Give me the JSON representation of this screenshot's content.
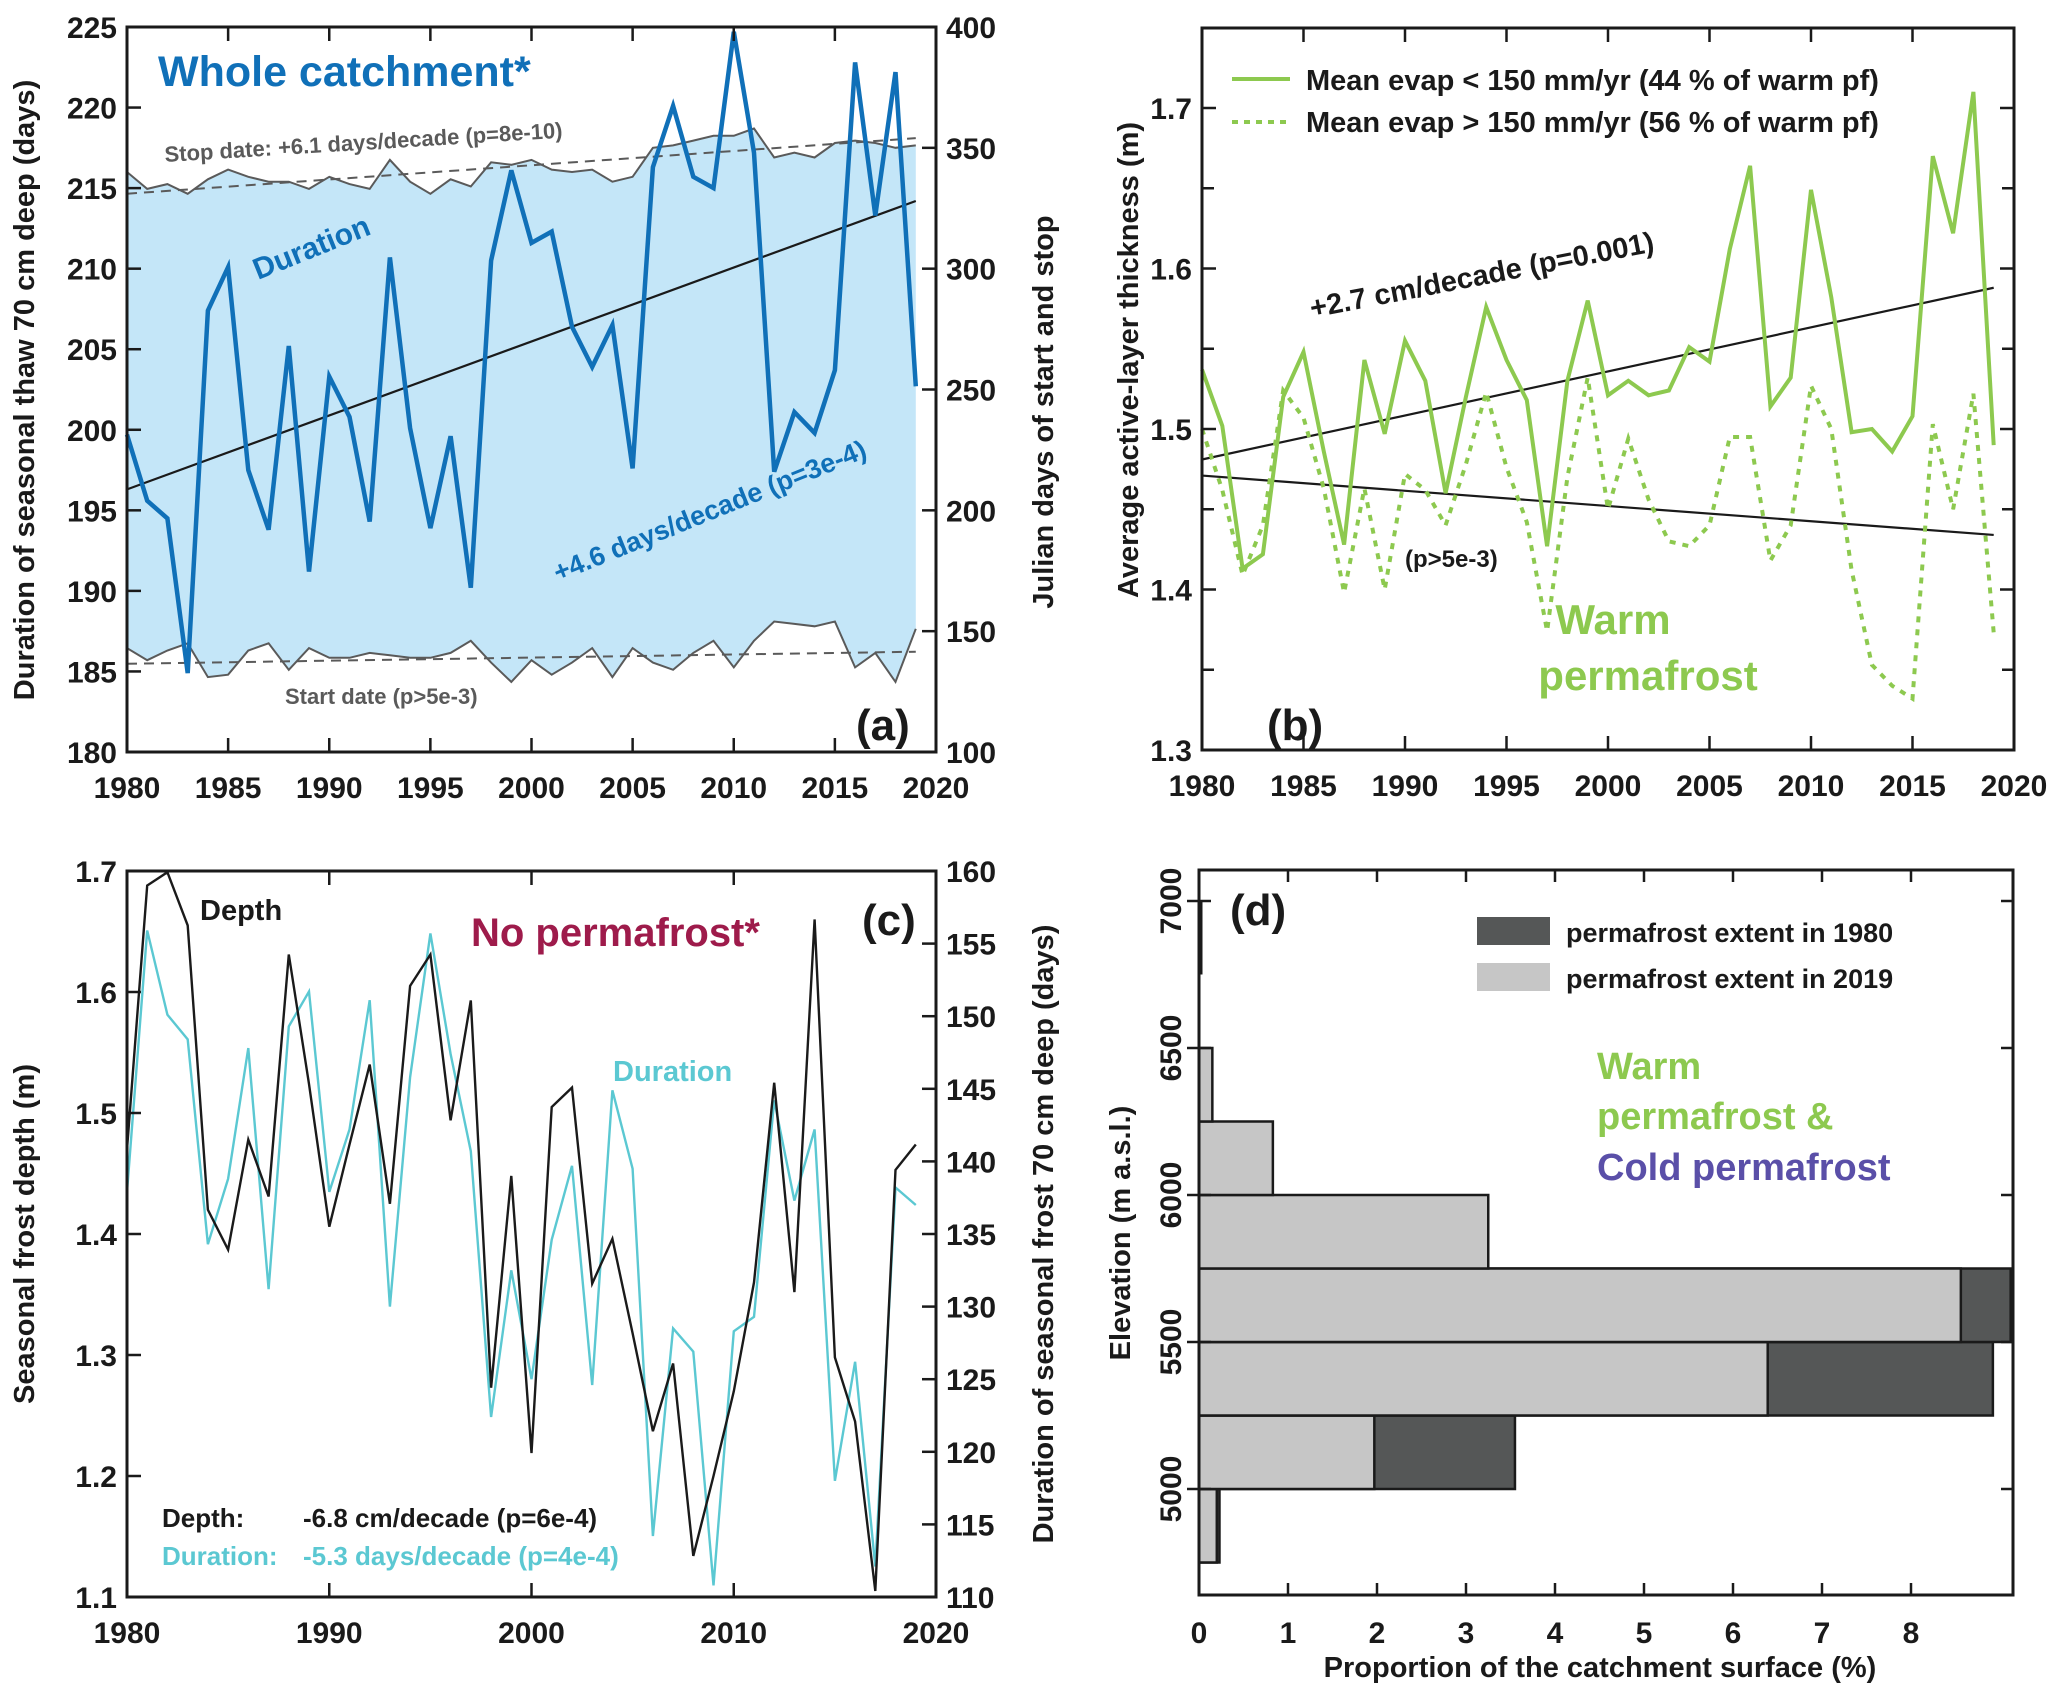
{
  "colors": {
    "duration_blue": "#1070B8",
    "fill_blue": "#C4E6F8",
    "gray_line": "#5A5A5A",
    "green": "#8DC94F",
    "cyan": "#5BC8D2",
    "maroon": "#9E1B4B",
    "purple": "#5A4FA8",
    "dark_bar": "#555757",
    "light_bar": "#C6C6C6",
    "black": "#1a1a1a"
  },
  "chart_data": [
    {
      "id": "a",
      "type": "line",
      "panel_label": "(a)",
      "title": "Whole catchment*",
      "xlabel": "",
      "ylabel": "Duration of seasonal thaw 70 cm deep (days)",
      "y2label": "Julian days of start and stop",
      "xlim": [
        1980,
        2020
      ],
      "ylim": [
        180,
        225
      ],
      "y2lim": [
        100,
        400
      ],
      "xticks": [
        1980,
        1985,
        1990,
        1995,
        2000,
        2005,
        2010,
        2015,
        2020
      ],
      "yticks": [
        180,
        185,
        190,
        195,
        200,
        205,
        210,
        215,
        220,
        225
      ],
      "y2ticks": [
        100,
        150,
        200,
        250,
        300,
        350,
        400
      ],
      "x": [
        1980,
        1981,
        1982,
        1983,
        1984,
        1985,
        1986,
        1987,
        1988,
        1989,
        1990,
        1991,
        1992,
        1993,
        1994,
        1995,
        1996,
        1997,
        1998,
        1999,
        2000,
        2001,
        2002,
        2003,
        2004,
        2005,
        2006,
        2007,
        2008,
        2009,
        2010,
        2011,
        2012,
        2013,
        2014,
        2015,
        2016,
        2017,
        2018,
        2019
      ],
      "series": [
        {
          "name": "Duration",
          "axis": "left",
          "values": [
            199.7,
            195.6,
            194.5,
            184.9,
            207.4,
            210.1,
            197.5,
            193.8,
            205.2,
            191.2,
            203.3,
            200.8,
            194.3,
            210.7,
            200.1,
            193.9,
            199.6,
            190.2,
            210.5,
            216.1,
            211.6,
            212.3,
            206.4,
            203.9,
            206.5,
            197.6,
            216.3,
            220.1,
            215.7,
            215.0,
            224.7,
            217.2,
            197.4,
            201.1,
            199.8,
            203.7,
            222.8,
            213.3,
            222.2,
            202.7
          ]
        },
        {
          "name": "Stop date",
          "axis": "right",
          "values": [
            340,
            333,
            335,
            331,
            337,
            341,
            338,
            336,
            336,
            333,
            338,
            335,
            333,
            345,
            336,
            331,
            337,
            334,
            344,
            343,
            345,
            341,
            340,
            341,
            336,
            338,
            350,
            351,
            353,
            355,
            355,
            358,
            346,
            348,
            346,
            352,
            353,
            352,
            350,
            351
          ]
        },
        {
          "name": "Start date",
          "axis": "right",
          "values": [
            143,
            138,
            142,
            145,
            131,
            132,
            142,
            145,
            134,
            143,
            139,
            139,
            141,
            140,
            139,
            139,
            141,
            146,
            137,
            129,
            138,
            132,
            137,
            143,
            131,
            143,
            137,
            134,
            141,
            146,
            135,
            146,
            154,
            153,
            152,
            154,
            135,
            141,
            129,
            151
          ]
        }
      ],
      "trends": [
        {
          "name": "Duration trend",
          "axis": "left",
          "from": [
            1980,
            196.3
          ],
          "to": [
            2019,
            214.2
          ],
          "style": "solid"
        },
        {
          "name": "Stop date trend",
          "axis": "right",
          "from": [
            1980,
            331
          ],
          "to": [
            2019,
            354
          ],
          "style": "dashed"
        },
        {
          "name": "Start date trend",
          "axis": "right",
          "from": [
            1980,
            136.5
          ],
          "to": [
            2019,
            141.5
          ],
          "style": "dashed"
        }
      ],
      "annotations": {
        "region_label": "Duration",
        "stop_trend": "Stop date: +6.1 days/decade (p=8e-10)",
        "duration_trend": "+4.6 days/decade (p=3e-4)",
        "start_trend": "Start date (p>5e-3)"
      }
    },
    {
      "id": "b",
      "type": "line",
      "panel_label": "(b)",
      "title": "Warm permafrost",
      "title_lines": [
        "Warm",
        "permafrost"
      ],
      "xlabel": "",
      "ylabel": "Average active-layer thickness (m)",
      "xlim": [
        1980,
        2020
      ],
      "ylim": [
        1.3,
        1.75
      ],
      "xticks": [
        1980,
        1985,
        1990,
        1995,
        2000,
        2005,
        2010,
        2015,
        2020
      ],
      "yticks": [
        1.3,
        1.4,
        1.5,
        1.6,
        1.7
      ],
      "yticks_minor": [
        1.35,
        1.45,
        1.55,
        1.65
      ],
      "legend": {
        "placement": "top-right",
        "entries": [
          "Mean evap < 150 mm/yr (44 % of warm pf)",
          "Mean evap > 150 mm/yr (56 % of warm pf)"
        ]
      },
      "x": [
        1980,
        1981,
        1982,
        1983,
        1984,
        1985,
        1986,
        1987,
        1988,
        1989,
        1990,
        1991,
        1992,
        1993,
        1994,
        1995,
        1996,
        1997,
        1998,
        1999,
        2000,
        2001,
        2002,
        2003,
        2004,
        2005,
        2006,
        2007,
        2008,
        2009,
        2010,
        2011,
        2012,
        2013,
        2014,
        2015,
        2016,
        2017,
        2018,
        2019
      ],
      "series": [
        {
          "name": "Mean evap < 150 mm/yr (44 % of warm pf)",
          "style": "solid",
          "values": [
            1.537,
            1.502,
            1.413,
            1.422,
            1.52,
            1.548,
            1.486,
            1.428,
            1.543,
            1.497,
            1.555,
            1.53,
            1.46,
            1.52,
            1.576,
            1.543,
            1.518,
            1.427,
            1.53,
            1.58,
            1.521,
            1.53,
            1.521,
            1.524,
            1.551,
            1.542,
            1.612,
            1.664,
            1.514,
            1.532,
            1.649,
            1.582,
            1.498,
            1.5,
            1.486,
            1.508,
            1.67,
            1.622,
            1.71,
            1.49
          ]
        },
        {
          "name": "Mean evap > 150 mm/yr (56 % of warm pf)",
          "style": "dotted",
          "values": [
            1.5,
            1.462,
            1.409,
            1.44,
            1.524,
            1.507,
            1.463,
            1.398,
            1.463,
            1.4,
            1.472,
            1.462,
            1.44,
            1.478,
            1.523,
            1.476,
            1.442,
            1.374,
            1.47,
            1.532,
            1.45,
            1.494,
            1.456,
            1.43,
            1.427,
            1.44,
            1.495,
            1.495,
            1.418,
            1.44,
            1.527,
            1.5,
            1.412,
            1.353,
            1.34,
            1.332,
            1.503,
            1.45,
            1.522,
            1.373
          ]
        }
      ],
      "trends": [
        {
          "name": "Low evap trend",
          "from": [
            1980,
            1.481
          ],
          "to": [
            2019,
            1.588
          ],
          "style": "solid"
        },
        {
          "name": "High evap trend",
          "from": [
            1980,
            1.471
          ],
          "to": [
            2019,
            1.434
          ],
          "style": "solid"
        }
      ],
      "annotations": {
        "upper_trend": "+2.7 cm/decade (p=0.001)",
        "lower_trend": "(p>5e-3)"
      }
    },
    {
      "id": "c",
      "type": "line",
      "panel_label": "(c)",
      "title": "No permafrost*",
      "xlabel": "",
      "ylabel": "Seasonal frost depth (m)",
      "y2label": "Duration of seasonal frost 70 cm deep (days)",
      "xlim": [
        1980,
        2020
      ],
      "ylim": [
        1.1,
        1.7
      ],
      "y2lim": [
        110,
        160
      ],
      "xticks": [
        1980,
        1990,
        2000,
        2010,
        2020
      ],
      "yticks": [
        1.1,
        1.2,
        1.3,
        1.4,
        1.5,
        1.6,
        1.7
      ],
      "y2ticks": [
        110,
        115,
        120,
        125,
        130,
        135,
        140,
        145,
        150,
        155,
        160
      ],
      "x": [
        1980,
        1981,
        1982,
        1983,
        1984,
        1985,
        1986,
        1987,
        1988,
        1989,
        1990,
        1991,
        1992,
        1993,
        1994,
        1995,
        1996,
        1997,
        1998,
        1999,
        2000,
        2001,
        2002,
        2003,
        2004,
        2005,
        2006,
        2007,
        2008,
        2009,
        2010,
        2011,
        2012,
        2013,
        2014,
        2015,
        2016,
        2017,
        2018,
        2019
      ],
      "series": [
        {
          "name": "Depth",
          "axis": "left",
          "values": [
            1.47,
            1.688,
            1.699,
            1.655,
            1.42,
            1.387,
            1.478,
            1.431,
            1.631,
            1.524,
            1.406,
            1.474,
            1.54,
            1.425,
            1.605,
            1.631,
            1.494,
            1.593,
            1.273,
            1.448,
            1.219,
            1.505,
            1.521,
            1.359,
            1.396,
            1.318,
            1.237,
            1.293,
            1.134,
            1.2,
            1.27,
            1.36,
            1.525,
            1.352,
            1.66,
            1.298,
            1.245,
            1.105,
            1.453,
            1.474
          ]
        },
        {
          "name": "Duration",
          "axis": "right",
          "values": [
            137.9,
            155.9,
            150.1,
            148.4,
            134.3,
            138.8,
            147.8,
            131.2,
            149.3,
            151.7,
            137.9,
            142.2,
            151.1,
            130.0,
            145.8,
            155.7,
            147.4,
            140.7,
            122.4,
            132.5,
            125.0,
            134.6,
            139.7,
            124.6,
            144.9,
            139.5,
            114.2,
            128.5,
            126.9,
            110.8,
            128.3,
            129.3,
            144.2,
            137.3,
            142.2,
            118.0,
            126.2,
            112.1,
            138.2,
            137.0
          ]
        }
      ],
      "annotations": {
        "depth_label": "Depth",
        "duration_label": "Duration",
        "depth_trend_key": "Depth:",
        "depth_trend_value": "-6.8 cm/decade (p=6e-4)",
        "duration_trend_key": "Duration:",
        "duration_trend_value": "-5.3 days/decade (p=4e-4)"
      }
    },
    {
      "id": "d",
      "type": "bar",
      "orientation": "horizontal",
      "panel_label": "(d)",
      "title_lines": [
        "Warm",
        "permafrost &",
        "Cold permafrost"
      ],
      "xlabel": "Proportion of the catchment surface (%)",
      "ylabel": "Elevation (m a.s.l.)",
      "xlim": [
        0,
        9.15
      ],
      "ylim": [
        4640,
        7110
      ],
      "xticks": [
        0,
        1,
        2,
        3,
        4,
        5,
        6,
        7,
        8
      ],
      "yticks": [
        5000,
        5500,
        6000,
        6500,
        7000
      ],
      "legend": {
        "placement": "top-right",
        "entries": [
          "permafrost extent in 1980",
          "permafrost extent in 2019"
        ]
      },
      "bins": [
        {
          "from": 4750,
          "to": 5000,
          "extent_1980": 0.23,
          "extent_2019": 0.2
        },
        {
          "from": 5000,
          "to": 5250,
          "extent_1980": 3.55,
          "extent_2019": 1.97
        },
        {
          "from": 5250,
          "to": 5500,
          "extent_1980": 8.92,
          "extent_2019": 6.39
        },
        {
          "from": 5500,
          "to": 5750,
          "extent_1980": 9.12,
          "extent_2019": 8.56
        },
        {
          "from": 5750,
          "to": 6000,
          "extent_1980": 3.25,
          "extent_2019": 3.25
        },
        {
          "from": 6000,
          "to": 6250,
          "extent_1980": 0.83,
          "extent_2019": 0.83
        },
        {
          "from": 6250,
          "to": 6500,
          "extent_1980": 0.15,
          "extent_2019": 0.15
        },
        {
          "from": 6750,
          "to": 7000,
          "extent_1980": 0.02,
          "extent_2019": 0.02
        }
      ]
    }
  ]
}
